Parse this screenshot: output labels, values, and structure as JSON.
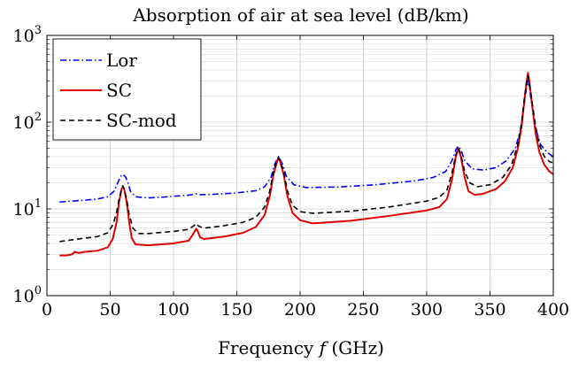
{
  "chart_data": {
    "type": "line",
    "title": "Absorption of air at sea level (dB/km)",
    "xlabel": "Frequency",
    "xlabel_symbol": "f",
    "xlabel_unit": "(GHz)",
    "ylabel": "",
    "x_scale": "linear",
    "y_scale": "log",
    "xlim": [
      0,
      400
    ],
    "ylim": [
      1,
      1000
    ],
    "x_ticks": [
      0,
      50,
      100,
      150,
      200,
      250,
      300,
      350,
      400
    ],
    "x_tick_labels": [
      "0",
      "50",
      "100",
      "150",
      "200",
      "250",
      "300",
      "350",
      "400"
    ],
    "y_ticks": [
      1,
      10,
      100,
      1000
    ],
    "y_tick_labels": [
      {
        "base": "10",
        "exp": "0"
      },
      {
        "base": "10",
        "exp": "1"
      },
      {
        "base": "10",
        "exp": "2"
      },
      {
        "base": "10",
        "exp": "3"
      }
    ],
    "grid": "major and minor",
    "legend_position": "top-left",
    "series": [
      {
        "name": "Lor",
        "color": "#0000ff",
        "style": "dash-dot",
        "points": [
          [
            10,
            12
          ],
          [
            20,
            12.3
          ],
          [
            30,
            12.6
          ],
          [
            40,
            13
          ],
          [
            48,
            13.8
          ],
          [
            53,
            16
          ],
          [
            56,
            20
          ],
          [
            58,
            23.5
          ],
          [
            60,
            25
          ],
          [
            62,
            23.5
          ],
          [
            64,
            20
          ],
          [
            66,
            16
          ],
          [
            70,
            13.8
          ],
          [
            80,
            13.4
          ],
          [
            90,
            13.6
          ],
          [
            100,
            14
          ],
          [
            110,
            14.3
          ],
          [
            115,
            14.6
          ],
          [
            118,
            15
          ],
          [
            121,
            14.6
          ],
          [
            130,
            14.7
          ],
          [
            150,
            15.3
          ],
          [
            165,
            16.2
          ],
          [
            172,
            18
          ],
          [
            177,
            23
          ],
          [
            180,
            33
          ],
          [
            183,
            40
          ],
          [
            186,
            33
          ],
          [
            189,
            24
          ],
          [
            195,
            19
          ],
          [
            205,
            17.6
          ],
          [
            230,
            17.9
          ],
          [
            260,
            19
          ],
          [
            290,
            21
          ],
          [
            305,
            23
          ],
          [
            315,
            27
          ],
          [
            320,
            36
          ],
          [
            323,
            48
          ],
          [
            325,
            53
          ],
          [
            327,
            48
          ],
          [
            330,
            36
          ],
          [
            336,
            29
          ],
          [
            345,
            28
          ],
          [
            355,
            30
          ],
          [
            363,
            36
          ],
          [
            370,
            50
          ],
          [
            374,
            80
          ],
          [
            377,
            160
          ],
          [
            379,
            260
          ],
          [
            380,
            300
          ],
          [
            381,
            260
          ],
          [
            383,
            160
          ],
          [
            386,
            85
          ],
          [
            390,
            55
          ],
          [
            395,
            45
          ],
          [
            400,
            40
          ]
        ]
      },
      {
        "name": "SC",
        "color": "#e00000",
        "style": "solid",
        "points": [
          [
            10,
            2.9
          ],
          [
            15,
            2.9
          ],
          [
            20,
            3
          ],
          [
            22,
            3.2
          ],
          [
            25,
            3.1
          ],
          [
            30,
            3.2
          ],
          [
            40,
            3.3
          ],
          [
            48,
            3.6
          ],
          [
            52,
            4.5
          ],
          [
            55,
            7
          ],
          [
            57,
            12
          ],
          [
            59,
            17
          ],
          [
            60,
            18
          ],
          [
            61,
            17
          ],
          [
            63,
            12
          ],
          [
            65,
            7
          ],
          [
            67,
            4.6
          ],
          [
            70,
            3.9
          ],
          [
            80,
            3.8
          ],
          [
            100,
            4
          ],
          [
            112,
            4.3
          ],
          [
            115,
            5
          ],
          [
            117,
            5.6
          ],
          [
            118,
            5.9
          ],
          [
            119,
            5.6
          ],
          [
            121,
            4.7
          ],
          [
            124,
            4.5
          ],
          [
            140,
            4.8
          ],
          [
            155,
            5.3
          ],
          [
            165,
            6.2
          ],
          [
            172,
            8.5
          ],
          [
            176,
            14
          ],
          [
            179,
            25
          ],
          [
            182,
            36
          ],
          [
            183,
            38
          ],
          [
            184,
            36
          ],
          [
            187,
            25
          ],
          [
            190,
            14
          ],
          [
            194,
            9
          ],
          [
            200,
            7.4
          ],
          [
            210,
            6.8
          ],
          [
            240,
            7.3
          ],
          [
            270,
            8.3
          ],
          [
            300,
            9.6
          ],
          [
            310,
            10.5
          ],
          [
            316,
            13
          ],
          [
            320,
            22
          ],
          [
            323,
            40
          ],
          [
            325,
            50
          ],
          [
            327,
            40
          ],
          [
            330,
            23
          ],
          [
            333,
            16
          ],
          [
            338,
            14.5
          ],
          [
            345,
            15
          ],
          [
            355,
            17
          ],
          [
            362,
            21
          ],
          [
            368,
            30
          ],
          [
            372,
            50
          ],
          [
            375,
            90
          ],
          [
            377,
            170
          ],
          [
            379,
            300
          ],
          [
            380,
            370
          ],
          [
            381,
            300
          ],
          [
            383,
            170
          ],
          [
            386,
            75
          ],
          [
            389,
            45
          ],
          [
            393,
            32
          ],
          [
            397,
            27
          ],
          [
            400,
            25
          ]
        ]
      },
      {
        "name": "SC-mod",
        "color": "#000000",
        "style": "dashed",
        "points": [
          [
            10,
            4.2
          ],
          [
            20,
            4.4
          ],
          [
            30,
            4.6
          ],
          [
            40,
            4.8
          ],
          [
            48,
            5.3
          ],
          [
            52,
            6.5
          ],
          [
            55,
            9
          ],
          [
            57,
            13
          ],
          [
            59,
            17
          ],
          [
            60,
            18.5
          ],
          [
            61,
            17
          ],
          [
            63,
            13
          ],
          [
            65,
            8.5
          ],
          [
            68,
            6
          ],
          [
            72,
            5.2
          ],
          [
            80,
            5.2
          ],
          [
            100,
            5.5
          ],
          [
            112,
            5.8
          ],
          [
            116,
            6.4
          ],
          [
            118,
            6.8
          ],
          [
            120,
            6.3
          ],
          [
            124,
            6
          ],
          [
            140,
            6.4
          ],
          [
            155,
            7
          ],
          [
            165,
            8
          ],
          [
            172,
            10.5
          ],
          [
            176,
            16
          ],
          [
            179,
            27
          ],
          [
            182,
            37
          ],
          [
            183,
            39
          ],
          [
            184,
            37
          ],
          [
            187,
            27
          ],
          [
            190,
            16
          ],
          [
            194,
            11
          ],
          [
            200,
            9.3
          ],
          [
            210,
            8.9
          ],
          [
            240,
            9.4
          ],
          [
            270,
            10.5
          ],
          [
            300,
            12.3
          ],
          [
            310,
            13.6
          ],
          [
            316,
            16.5
          ],
          [
            320,
            26
          ],
          [
            323,
            42
          ],
          [
            325,
            50
          ],
          [
            327,
            42
          ],
          [
            330,
            27
          ],
          [
            334,
            20
          ],
          [
            340,
            18
          ],
          [
            350,
            19
          ],
          [
            360,
            23
          ],
          [
            367,
            32
          ],
          [
            372,
            55
          ],
          [
            375,
            100
          ],
          [
            377,
            180
          ],
          [
            379,
            290
          ],
          [
            380,
            340
          ],
          [
            381,
            290
          ],
          [
            383,
            180
          ],
          [
            386,
            90
          ],
          [
            389,
            55
          ],
          [
            393,
            40
          ],
          [
            397,
            35
          ],
          [
            400,
            34
          ]
        ]
      }
    ]
  }
}
